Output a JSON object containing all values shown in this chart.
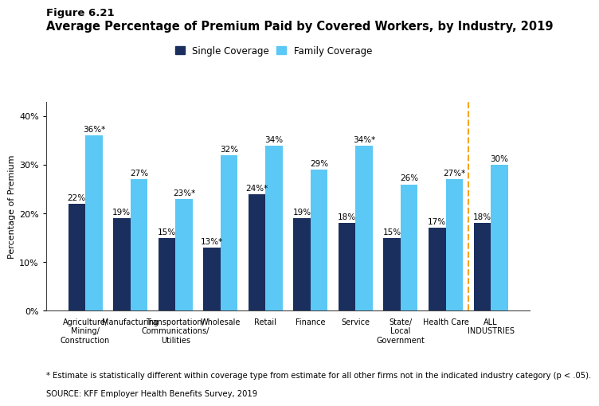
{
  "figure_label": "Figure 6.21",
  "title": "Average Percentage of Premium Paid by Covered Workers, by Industry, 2019",
  "categories": [
    "Agriculture/\nMining/\nConstruction",
    "Manufacturing",
    "Transportation/\nCommunications/\nUtilities",
    "Wholesale",
    "Retail",
    "Finance",
    "Service",
    "State/\nLocal\nGovernment",
    "Health Care",
    "ALL\nINDUSTRIES"
  ],
  "single_values": [
    22,
    19,
    15,
    13,
    24,
    19,
    18,
    15,
    17,
    18
  ],
  "family_values": [
    36,
    27,
    23,
    32,
    34,
    29,
    34,
    26,
    27,
    30
  ],
  "single_labels": [
    "22%",
    "19%",
    "15%",
    "13%*",
    "24%*",
    "19%",
    "18%",
    "15%",
    "17%",
    "18%"
  ],
  "family_labels": [
    "36%*",
    "27%",
    "23%*",
    "32%",
    "34%",
    "29%",
    "34%*",
    "26%",
    "27%*",
    "30%"
  ],
  "single_color": "#1a2f5e",
  "family_color": "#5bc8f5",
  "bar_width": 0.38,
  "ylim": [
    0,
    43
  ],
  "yticks": [
    0,
    10,
    20,
    30,
    40
  ],
  "ytick_labels": [
    "0%",
    "10%",
    "20%",
    "30%",
    "40%"
  ],
  "ylabel": "Percentage of Premium",
  "legend_labels": [
    "Single Coverage",
    "Family Coverage"
  ],
  "footnote": "* Estimate is statistically different within coverage type from estimate for all other firms not in the indicated industry category (p < .05).",
  "source": "SOURCE: KFF Employer Health Benefits Survey, 2019",
  "background_color": "#ffffff",
  "bar_label_fontsize": 7.5,
  "axis_fontsize": 8,
  "xtick_fontsize": 7,
  "legend_fontsize": 8.5,
  "title_fontsize": 10.5,
  "figure_label_fontsize": 9.5
}
